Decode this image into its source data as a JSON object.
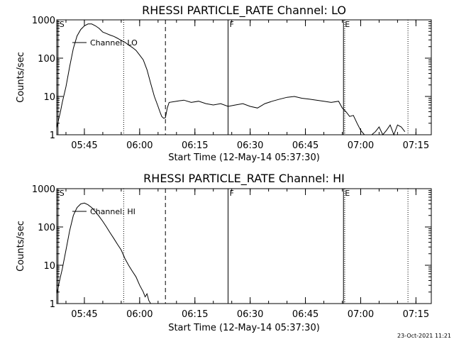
{
  "footer_date": "23-Oct-2021 11:21",
  "chart_data": [
    {
      "type": "line",
      "title": "RHESSI PARTICLE_RATE Channel: LO",
      "xlabel": "Start Time (12-May-14 05:37:30)",
      "ylabel": "Counts/sec",
      "yscale": "log",
      "ylim": [
        1,
        1000
      ],
      "yticks": [
        "1",
        "10",
        "100",
        "1000"
      ],
      "xlim": [
        "05:37:30",
        "07:19:10"
      ],
      "xticks": [
        "05:45",
        "06:00",
        "06:15",
        "06:30",
        "06:45",
        "07:00",
        "07:15"
      ],
      "legend": {
        "label": "Channel: LO",
        "placement": "top-left"
      },
      "markers": [
        {
          "label": "S",
          "time": "05:37:50",
          "style": "solid"
        },
        {
          "label": "",
          "time": "05:55:40",
          "style": "dotted"
        },
        {
          "label": "",
          "time": "06:07:00",
          "style": "dashed"
        },
        {
          "label": "F",
          "time": "06:24:00",
          "style": "solid"
        },
        {
          "label": "E",
          "time": "06:55:20",
          "style": "solid"
        },
        {
          "label": "",
          "time": "06:55:40",
          "style": "dotted"
        },
        {
          "label": "",
          "time": "07:12:50",
          "style": "dotted"
        }
      ],
      "series": [
        {
          "x": [
            "05:37:30",
            "05:38:00",
            "05:38:30",
            "05:39:00",
            "05:40:00",
            "05:41:00",
            "05:42:00",
            "05:43:00",
            "05:44:00",
            "05:45:00",
            "05:46:00",
            "05:47:00",
            "05:48:00",
            "05:49:00",
            "05:50:00",
            "05:51:00",
            "05:52:00",
            "05:53:00",
            "05:54:00",
            "05:55:00",
            "05:56:00",
            "05:57:00",
            "05:58:00",
            "05:59:00",
            "06:00:00",
            "06:01:00",
            "06:02:00",
            "06:03:00",
            "06:04:00",
            "06:05:00",
            "06:05:30",
            "06:06:00",
            "06:06:30",
            "06:07:00",
            "06:07:30",
            "06:08:00",
            "06:10:00",
            "06:12:00",
            "06:14:00",
            "06:16:00",
            "06:18:00",
            "06:20:00",
            "06:22:00",
            "06:24:00",
            "06:26:00",
            "06:28:00",
            "06:30:00",
            "06:32:00",
            "06:34:00",
            "06:36:00",
            "06:38:00",
            "06:40:00",
            "06:42:00",
            "06:44:00",
            "06:46:00",
            "06:48:00",
            "06:50:00",
            "06:52:00",
            "06:54:00",
            "06:55:00",
            "06:56:00",
            "06:57:00",
            "06:58:00",
            "06:59:00",
            "07:00:00",
            "07:01:00",
            "07:02:00",
            "07:03:00",
            "07:04:00",
            "07:05:00",
            "07:06:00",
            "07:07:00",
            "07:08:00",
            "07:09:00",
            "07:10:00",
            "07:11:00",
            "07:12:00"
          ],
          "y": [
            1.5,
            2.5,
            4,
            7,
            18,
            60,
            180,
            380,
            560,
            700,
            780,
            780,
            700,
            600,
            480,
            440,
            400,
            370,
            330,
            290,
            260,
            220,
            190,
            160,
            120,
            90,
            50,
            22,
            10,
            5.5,
            4,
            3,
            2.7,
            2.8,
            5,
            7,
            7.5,
            8,
            7,
            7.5,
            6.5,
            6,
            6.5,
            5.5,
            6,
            6.5,
            5.5,
            5,
            6.5,
            7.5,
            8.5,
            9.5,
            10,
            9,
            8.5,
            8,
            7.5,
            7,
            7.5,
            5,
            4,
            3,
            3.2,
            2,
            1.3,
            1,
            1,
            1,
            1.2,
            1.6,
            1,
            1.3,
            1.8,
            1,
            1.8,
            1.6,
            1.2
          ]
        }
      ]
    },
    {
      "type": "line",
      "title": "RHESSI PARTICLE_RATE Channel: HI",
      "xlabel": "Start Time (12-May-14 05:37:30)",
      "ylabel": "Counts/sec",
      "yscale": "log",
      "ylim": [
        1,
        1000
      ],
      "yticks": [
        "1",
        "10",
        "100",
        "1000"
      ],
      "xlim": [
        "05:37:30",
        "07:19:10"
      ],
      "xticks": [
        "05:45",
        "06:00",
        "06:15",
        "06:30",
        "06:45",
        "07:00",
        "07:15"
      ],
      "legend": {
        "label": "Channel: HI",
        "placement": "top-left"
      },
      "markers": [
        {
          "label": "S",
          "time": "05:37:50",
          "style": "solid"
        },
        {
          "label": "",
          "time": "05:55:40",
          "style": "dotted"
        },
        {
          "label": "",
          "time": "06:07:00",
          "style": "dashed"
        },
        {
          "label": "F",
          "time": "06:24:00",
          "style": "solid"
        },
        {
          "label": "E",
          "time": "06:55:20",
          "style": "solid"
        },
        {
          "label": "",
          "time": "06:55:40",
          "style": "dotted"
        },
        {
          "label": "",
          "time": "07:12:50",
          "style": "dotted"
        }
      ],
      "series": [
        {
          "x": [
            "05:37:30",
            "05:38:00",
            "05:38:30",
            "05:39:00",
            "05:40:00",
            "05:41:00",
            "05:42:00",
            "05:43:00",
            "05:44:00",
            "05:45:00",
            "05:46:00",
            "05:47:00",
            "05:48:00",
            "05:49:00",
            "05:50:00",
            "05:51:00",
            "05:52:00",
            "05:53:00",
            "05:54:00",
            "05:55:00",
            "05:56:00",
            "05:57:00",
            "05:58:00",
            "05:59:00",
            "06:00:00",
            "06:01:00",
            "06:01:30",
            "06:02:00",
            "06:02:30",
            "06:03:00"
          ],
          "y": [
            1.8,
            3,
            5,
            8,
            25,
            80,
            200,
            320,
            400,
            420,
            380,
            320,
            250,
            190,
            140,
            100,
            70,
            50,
            35,
            25,
            15,
            10,
            7,
            5,
            3,
            2,
            1.5,
            1.8,
            1.2,
            1
          ]
        }
      ]
    }
  ]
}
